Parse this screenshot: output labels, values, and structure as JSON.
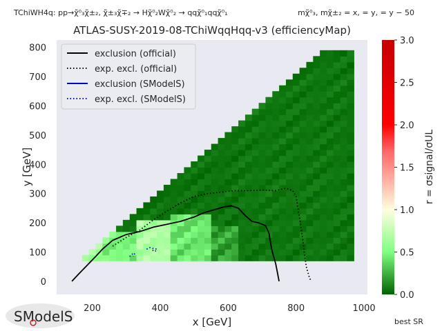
{
  "header": {
    "process": "TChiWH4q: pp→χ̃⁰₃χ̃±₂, χ̃±₃χ̃∓₂ → Hχ̃⁰₂Wχ̃⁰₂ → qqχ̃⁰₁qqχ̃⁰₁",
    "masses": "mχ̃⁰₃, mχ̃±₂ = x,  = y,  = y − 50"
  },
  "footer": {
    "logo_text": "SModelS",
    "best_sr": "best SR"
  },
  "chart_data": {
    "type": "heatmap",
    "title": "ATLAS-SUSY-2019-08-TChiWqqHqq-v3 (efficiencyMap)",
    "xlabel": "x [GeV]",
    "ylabel": "y [GeV]",
    "xlim": [
      95,
      1010
    ],
    "ylim": [
      -45,
      825
    ],
    "xticks": [
      200,
      400,
      600,
      800,
      1000
    ],
    "yticks": [
      0,
      100,
      200,
      300,
      400,
      500,
      600,
      700,
      800
    ],
    "grid": false,
    "background": "#e9e9f1",
    "colorbar": {
      "label": "r = σsignal/σUL",
      "range": [
        0.0,
        3.0
      ],
      "ticks": [
        0.0,
        0.5,
        1.0,
        1.5,
        2.0,
        2.5,
        3.0
      ],
      "tick_labels": [
        "0.0",
        "0.5",
        "1.0",
        "1.5",
        "2.0",
        "2.5",
        "3.0"
      ],
      "stops": [
        {
          "v": 0.0,
          "color": "#006400"
        },
        {
          "v": 0.5,
          "color": "#80ff80"
        },
        {
          "v": 1.0,
          "color": "#fffde0"
        },
        {
          "v": 1.7,
          "color": "#ff6464"
        },
        {
          "v": 2.0,
          "color": "#ff0000"
        },
        {
          "v": 3.0,
          "color": "#c80000"
        }
      ]
    },
    "grid_cells": {
      "x_step": 20,
      "y_step": 20,
      "y_min": 80,
      "y_max": 780,
      "lower_row_x_start": 150,
      "diagonal_offset": 100,
      "x_max": 960
    },
    "heat_regions": [
      {
        "x": [
          150,
          230
        ],
        "y": [
          80,
          140
        ],
        "r": 0.62
      },
      {
        "x": [
          230,
          330
        ],
        "y": [
          80,
          180
        ],
        "r": 0.48
      },
      {
        "x": [
          330,
          430
        ],
        "y": [
          80,
          220
        ],
        "r": 0.68
      },
      {
        "x": [
          430,
          560
        ],
        "y": [
          80,
          230
        ],
        "r": 0.42
      },
      {
        "x": [
          560,
          640
        ],
        "y": [
          80,
          200
        ],
        "r": 0.2
      },
      {
        "x": [
          640,
          960
        ],
        "y": [
          80,
          780
        ],
        "r": 0.06
      }
    ],
    "legend": {
      "placement": "top-left",
      "entries": [
        {
          "label": "exclusion (official)",
          "color": "#000000",
          "style": "solid"
        },
        {
          "label": "exp. excl. (official)",
          "color": "#000000",
          "style": "dotted"
        },
        {
          "label": "exclusion (SModelS)",
          "color": "#0000dd",
          "style": "solid"
        },
        {
          "label": "exp. excl. (SModelS)",
          "color": "#0000dd",
          "style": "dotted"
        }
      ]
    },
    "series": [
      {
        "name": "exclusion (official)",
        "style": "solid",
        "color": "#000000",
        "x": [
          140,
          160,
          185,
          210,
          230,
          260,
          300,
          340,
          380,
          420,
          460,
          500,
          530,
          560,
          590,
          610,
          630,
          650,
          670,
          690,
          710,
          720,
          725,
          730,
          735,
          740,
          745,
          750
        ],
        "y": [
          0,
          25,
          55,
          85,
          110,
          140,
          160,
          170,
          185,
          195,
          205,
          220,
          235,
          245,
          255,
          258,
          250,
          225,
          205,
          200,
          190,
          165,
          130,
          100,
          80,
          60,
          30,
          0
        ]
      },
      {
        "name": "exp. excl. (official)",
        "style": "dotted",
        "color": "#000000",
        "x": [
          260,
          300,
          340,
          380,
          420,
          460,
          500,
          540,
          580,
          620,
          660,
          700,
          740,
          770,
          790,
          800,
          810,
          820,
          825,
          830,
          835,
          840,
          845
        ],
        "y": [
          120,
          150,
          175,
          210,
          240,
          268,
          290,
          300,
          305,
          310,
          310,
          312,
          310,
          318,
          310,
          290,
          220,
          140,
          90,
          50,
          30,
          10,
          0
        ]
      },
      {
        "name": "exp. excl. (SModelS)",
        "style": "dotted",
        "color": "#0000dd",
        "x": [
          310,
          315,
          320,
          325,
          320
        ],
        "y": [
          85,
          90,
          95,
          95,
          85
        ]
      },
      {
        "name": "exp. excl. (SModelS)",
        "style": "dotted",
        "color": "#0000dd",
        "x": [
          360,
          370,
          380,
          390,
          385,
          375
        ],
        "y": [
          110,
          115,
          112,
          110,
          102,
          108
        ]
      }
    ]
  }
}
